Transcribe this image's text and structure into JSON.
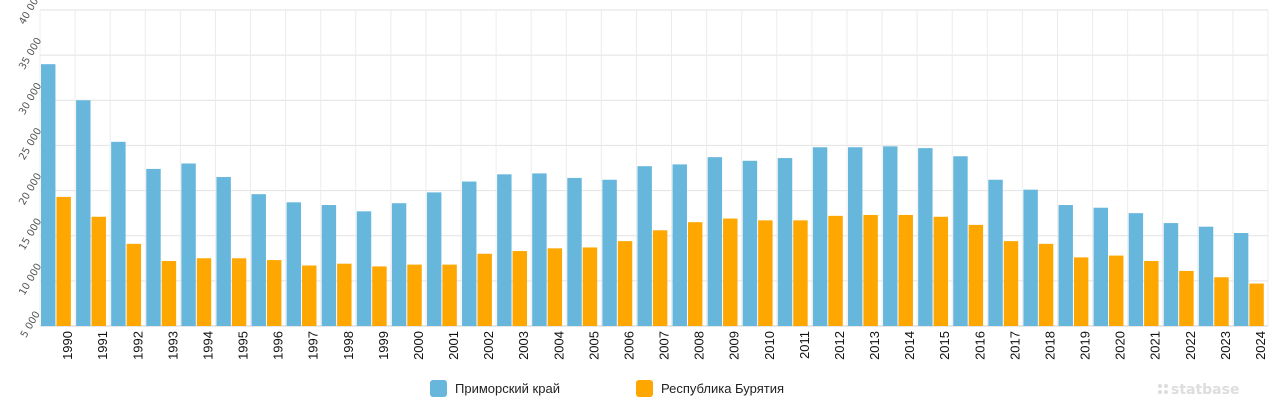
{
  "chart_data": {
    "type": "bar",
    "title": "",
    "xlabel": "",
    "ylabel": "",
    "ylim": [
      5000,
      40000
    ],
    "yticks": [
      5000,
      10000,
      15000,
      20000,
      25000,
      30000,
      35000,
      40000
    ],
    "ytick_labels": [
      "5 000",
      "10 000",
      "15 000",
      "20 000",
      "25 000",
      "30 000",
      "35 000",
      "40 000"
    ],
    "grid": true,
    "legend": "bottom-center",
    "categories": [
      "1990",
      "1991",
      "1992",
      "1993",
      "1994",
      "1995",
      "1996",
      "1997",
      "1998",
      "1999",
      "2000",
      "2001",
      "2002",
      "2003",
      "2004",
      "2005",
      "2006",
      "2007",
      "2008",
      "2009",
      "2010",
      "2011",
      "2012",
      "2013",
      "2014",
      "2015",
      "2016",
      "2017",
      "2018",
      "2019",
      "2020",
      "2021",
      "2022",
      "2023",
      "2024"
    ],
    "series": [
      {
        "name": "Приморский край",
        "color": "#67b7dc",
        "values": [
          34000,
          30000,
          25400,
          22400,
          23000,
          21500,
          19600,
          18700,
          18400,
          17700,
          18600,
          19800,
          21000,
          21800,
          21900,
          21400,
          21200,
          22700,
          22900,
          23700,
          23300,
          23600,
          24800,
          24800,
          24900,
          24700,
          23800,
          21200,
          20100,
          18400,
          18100,
          17500,
          16400,
          16000,
          15300
        ]
      },
      {
        "name": "Республика Бурятия",
        "color": "#fda700",
        "values": [
          19300,
          17100,
          14100,
          12200,
          12500,
          12500,
          12300,
          11700,
          11900,
          11600,
          11800,
          11800,
          13000,
          13300,
          13600,
          13700,
          14400,
          15600,
          16500,
          16900,
          16700,
          16700,
          17200,
          17300,
          17300,
          17100,
          16200,
          14400,
          14100,
          12600,
          12800,
          12200,
          11100,
          10400,
          9700
        ]
      }
    ]
  },
  "brand": {
    "text": "statbase",
    "icon": "statbase-dots-icon"
  }
}
